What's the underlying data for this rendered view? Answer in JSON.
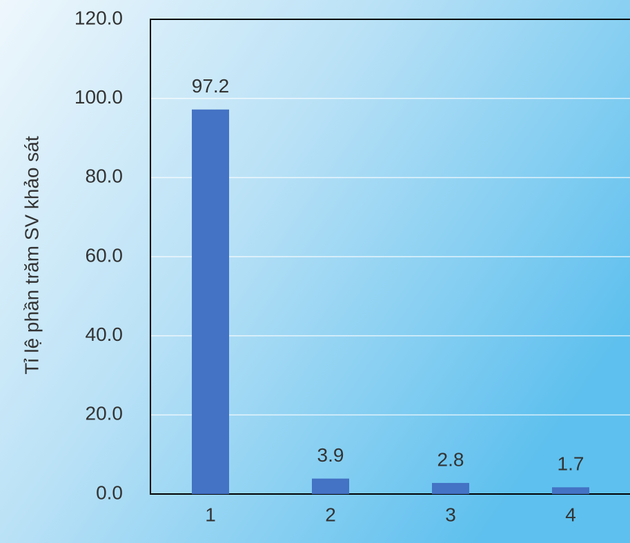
{
  "chart_data": {
    "type": "bar",
    "y_label": "Tỉ lệ phần trăm SV khảo sát",
    "categories": [
      "1",
      "2",
      "3",
      "4"
    ],
    "values": [
      97.2,
      3.9,
      2.8,
      1.7
    ],
    "color": "#4472c4",
    "ylim": [
      0,
      120
    ],
    "yticks": [
      {
        "value": 0,
        "label": "0.0"
      },
      {
        "value": 20,
        "label": "20.0"
      },
      {
        "value": 40,
        "label": "40.0"
      },
      {
        "value": 60,
        "label": "60.0"
      },
      {
        "value": 80,
        "label": "80.0"
      },
      {
        "value": 100,
        "label": "100.0"
      },
      {
        "value": 120,
        "label": "120.0"
      }
    ],
    "grid": true
  }
}
